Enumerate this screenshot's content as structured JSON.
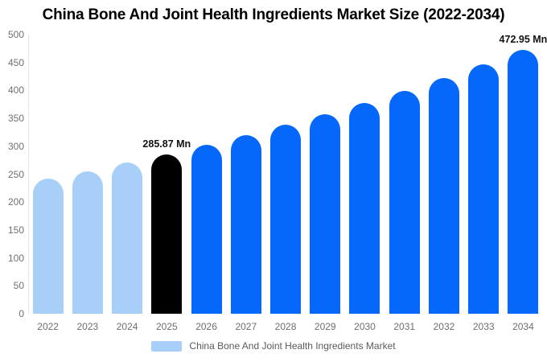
{
  "title": "China Bone And Joint Health Ingredients Market Size (2022-2034)",
  "colors": {
    "bar_historical": "#A8CFF8",
    "bar_highlight": "#000000",
    "bar_forecast": "#0667FB",
    "axis_text": "#707070",
    "value_label_text": "#111111"
  },
  "legend": {
    "label": "China Bone And Joint Health Ingredients Market",
    "swatch_color": "#A8CFF8"
  },
  "chart_data": {
    "type": "bar",
    "title": "China Bone And Joint Health Ingredients Market Size (2022-2034)",
    "categories": [
      "2022",
      "2023",
      "2024",
      "2025",
      "2026",
      "2027",
      "2028",
      "2029",
      "2030",
      "2031",
      "2032",
      "2033",
      "2034"
    ],
    "values": [
      241.7,
      255.6,
      270.3,
      285.87,
      302.3,
      319.7,
      338.1,
      357.5,
      378.1,
      399.8,
      422.8,
      447.1,
      472.95
    ],
    "unit": "Mn",
    "bar_colors": [
      "#A8CFF8",
      "#A8CFF8",
      "#A8CFF8",
      "#000000",
      "#0667FB",
      "#0667FB",
      "#0667FB",
      "#0667FB",
      "#0667FB",
      "#0667FB",
      "#0667FB",
      "#0667FB",
      "#0667FB"
    ],
    "data_labels": [
      {
        "category": "2025",
        "text": "285.87 Mn"
      },
      {
        "category": "2034",
        "text": "472.95 Mn"
      }
    ],
    "xlabel": "",
    "ylabel": "",
    "ylim": [
      0,
      500
    ],
    "ytick_step": 50,
    "yticks": [
      0,
      50,
      100,
      150,
      200,
      250,
      300,
      350,
      400,
      450,
      500
    ],
    "grid": false,
    "legend_position": "bottom"
  }
}
